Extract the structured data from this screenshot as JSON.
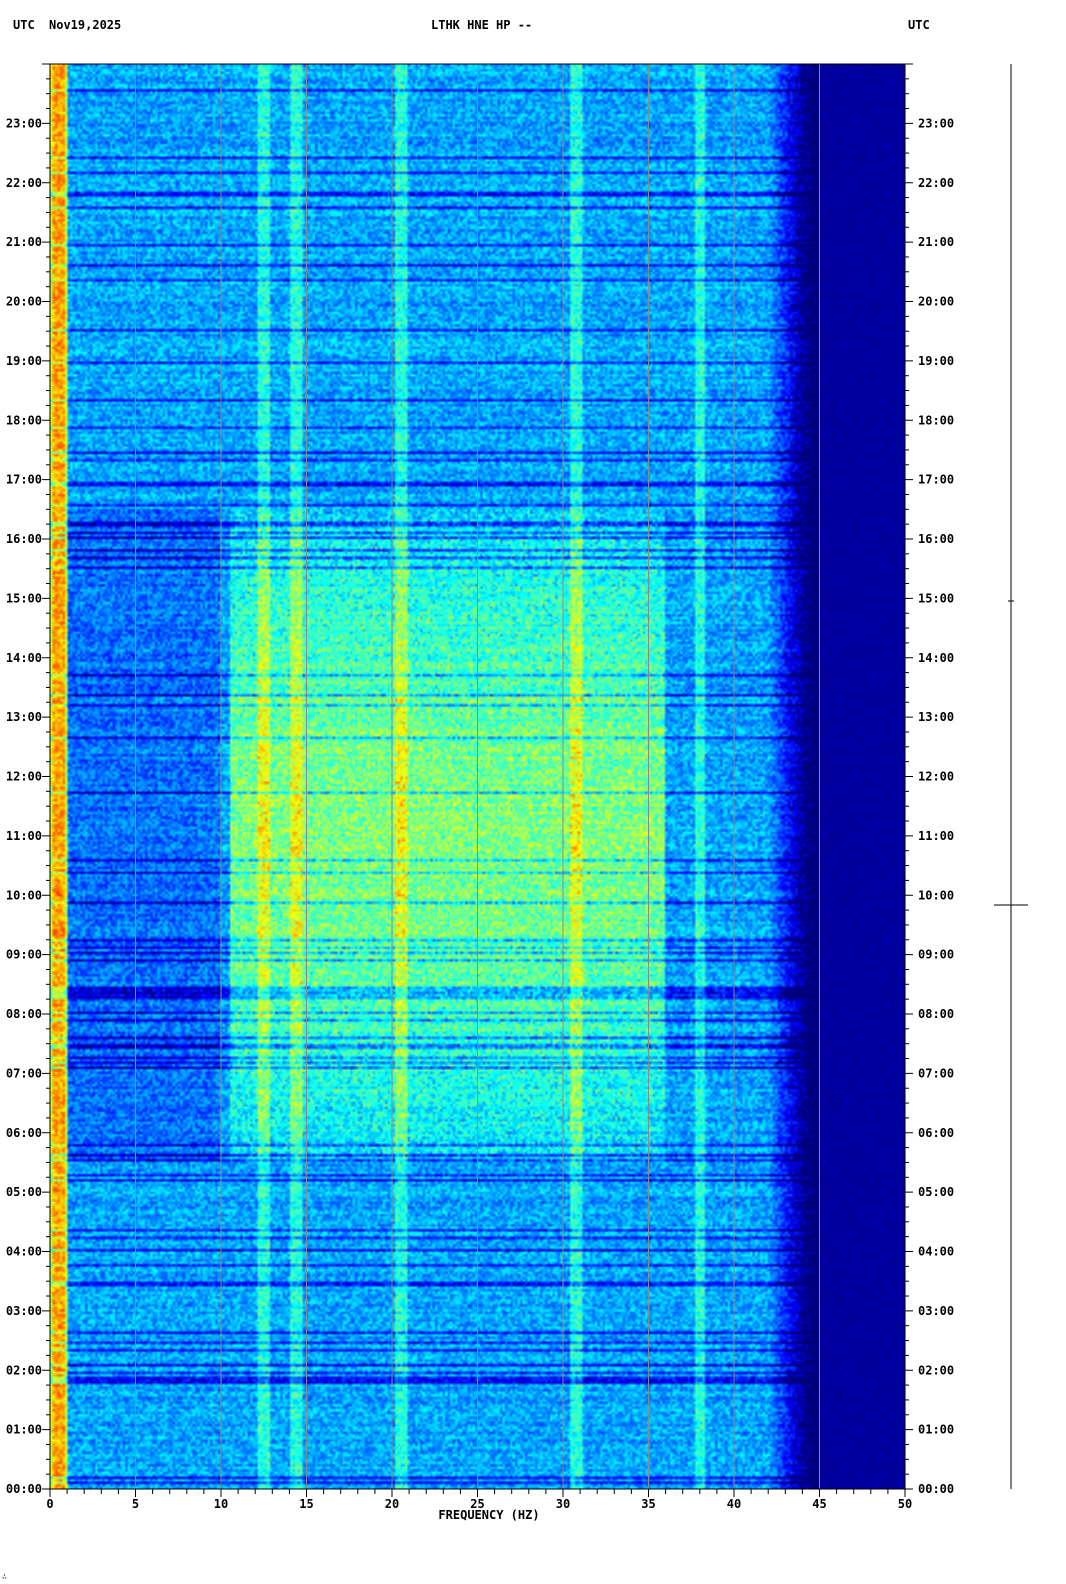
{
  "header": {
    "left_utc": "UTC",
    "date": "Nov19,2025",
    "station": "LTHK HNE HP --",
    "right_utc": "UTC"
  },
  "footer_mark": "∴",
  "chart_data": {
    "type": "heatmap",
    "title": "LTHK HNE HP --",
    "xlabel": "FREQUENCY (HZ)",
    "ylabel": "",
    "xlim": [
      0,
      50
    ],
    "x_ticks": [
      0,
      5,
      10,
      15,
      20,
      25,
      30,
      35,
      40,
      45,
      50
    ],
    "x_tick_labels": [
      "0",
      "5",
      "10",
      "15",
      "20",
      "25",
      "30",
      "35",
      "40",
      "45",
      "50"
    ],
    "y_range_hours": [
      0,
      24
    ],
    "y_ticks_hours": [
      0,
      1,
      2,
      3,
      4,
      5,
      6,
      7,
      8,
      9,
      10,
      11,
      12,
      13,
      14,
      15,
      16,
      17,
      18,
      19,
      20,
      21,
      22,
      23
    ],
    "y_tick_labels": [
      "00:00",
      "01:00",
      "02:00",
      "03:00",
      "04:00",
      "05:00",
      "06:00",
      "07:00",
      "08:00",
      "09:00",
      "10:00",
      "11:00",
      "12:00",
      "13:00",
      "14:00",
      "15:00",
      "16:00",
      "17:00",
      "18:00",
      "19:00",
      "20:00",
      "21:00",
      "22:00",
      "23:00"
    ],
    "gridlines_x_hz": [
      5,
      10,
      15,
      20,
      25,
      30,
      35,
      40,
      45
    ],
    "colormap": [
      "#00007f",
      "#0000ff",
      "#007fff",
      "#00ffff",
      "#7fff7f",
      "#ffff00",
      "#ff7f00",
      "#ff0000"
    ],
    "rolloff_hz": [
      42,
      45
    ],
    "persistent_lines_hz": [
      0.5,
      12.5,
      14.4,
      20.5,
      30.8,
      38
    ],
    "active_period_hours": [
      5.5,
      16.5
    ],
    "active_band_hz": [
      10.5,
      36
    ]
  }
}
